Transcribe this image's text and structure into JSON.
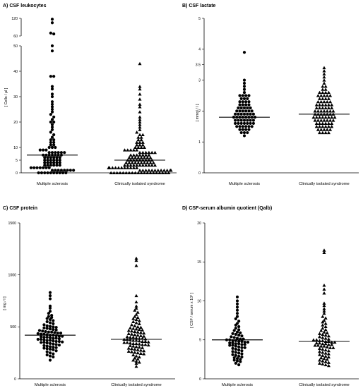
{
  "chart_data": [
    {
      "type": "scatter",
      "panel": "A",
      "title": "A) CSF leukocytes",
      "ylabel": "[ Cells / µl ]",
      "categories": [
        "Multiple sclerosis",
        "Clinically isolated syndrome"
      ],
      "y_axis_break": {
        "lower_range": [
          0,
          50
        ],
        "upper_range": [
          60,
          120
        ]
      },
      "yticks_lower": [
        "0",
        "5",
        "10",
        "20",
        "30",
        "40",
        "50"
      ],
      "yticks_upper": [
        "60",
        "120"
      ],
      "series": [
        {
          "name": "Multiple sclerosis",
          "marker": "circle",
          "median": 7,
          "values": [
            117,
            105,
            70,
            67,
            50,
            48,
            38,
            38,
            34,
            33,
            31,
            30,
            28,
            27,
            26,
            25,
            24,
            23,
            22,
            21,
            20,
            20,
            19,
            18,
            17,
            16,
            15,
            14,
            13,
            13,
            12,
            12,
            11,
            11,
            10,
            10,
            10,
            9,
            9,
            9,
            8,
            8,
            8,
            8,
            8,
            8,
            7,
            7,
            7,
            7,
            7,
            7,
            7,
            6,
            6,
            6,
            6,
            6,
            6,
            5,
            5,
            5,
            5,
            5,
            5,
            4,
            4,
            4,
            4,
            4,
            4,
            3,
            3,
            3,
            3,
            3,
            3,
            2,
            2,
            2,
            2,
            2,
            2,
            2,
            1,
            1,
            1,
            1,
            1,
            1,
            1,
            1,
            0,
            0,
            0,
            0,
            0,
            0,
            0,
            0,
            0,
            0
          ]
        },
        {
          "name": "Clinically isolated syndrome",
          "marker": "triangle",
          "median": 5,
          "values": [
            43,
            34,
            33,
            31,
            29,
            27,
            26,
            24,
            22,
            21,
            20,
            19,
            18,
            17,
            16,
            15,
            15,
            14,
            14,
            13,
            13,
            12,
            12,
            12,
            11,
            11,
            11,
            10,
            10,
            10,
            10,
            9,
            9,
            9,
            9,
            9,
            8,
            8,
            8,
            8,
            8,
            8,
            7,
            7,
            7,
            7,
            7,
            7,
            7,
            6,
            6,
            6,
            6,
            6,
            6,
            6,
            6,
            5,
            5,
            5,
            5,
            5,
            5,
            5,
            5,
            5,
            4,
            4,
            4,
            4,
            4,
            4,
            4,
            4,
            4,
            4,
            3,
            3,
            3,
            3,
            3,
            3,
            3,
            3,
            3,
            3,
            3,
            2,
            2,
            2,
            2,
            2,
            2,
            2,
            2,
            2,
            2,
            2,
            2,
            1,
            1,
            1,
            1,
            1,
            1,
            1,
            1,
            1,
            1,
            1,
            1,
            1,
            0,
            0,
            0,
            0,
            0,
            0,
            0,
            0,
            0,
            0,
            0,
            0,
            0,
            0,
            0,
            0,
            0,
            0,
            0,
            0
          ]
        }
      ]
    },
    {
      "type": "scatter",
      "panel": "B",
      "title": "B) CSF lactate",
      "ylabel": "[ mmol / l ]",
      "categories": [
        "Multiple sclerosis",
        "Clinically isolated syndrome"
      ],
      "ylim": [
        0,
        5
      ],
      "yticks": [
        "0",
        "1",
        "2",
        "3",
        "3.5",
        "4",
        "5"
      ],
      "ytick_values": [
        0,
        1,
        2,
        3,
        3.5,
        4,
        5
      ],
      "series": [
        {
          "name": "Multiple sclerosis",
          "marker": "circle",
          "median": 1.8,
          "values": [
            3.9,
            3.0,
            2.9,
            2.8,
            2.7,
            2.6,
            2.5,
            2.5,
            2.5,
            2.5,
            2.4,
            2.4,
            2.4,
            2.3,
            2.3,
            2.3,
            2.3,
            2.2,
            2.2,
            2.2,
            2.2,
            2.1,
            2.1,
            2.1,
            2.1,
            2.1,
            2.0,
            2.0,
            2.0,
            2.0,
            2.0,
            2.0,
            1.9,
            1.9,
            1.9,
            1.9,
            1.9,
            1.9,
            1.9,
            1.8,
            1.8,
            1.8,
            1.8,
            1.8,
            1.8,
            1.8,
            1.8,
            1.7,
            1.7,
            1.7,
            1.7,
            1.7,
            1.7,
            1.7,
            1.6,
            1.6,
            1.6,
            1.6,
            1.6,
            1.6,
            1.6,
            1.5,
            1.5,
            1.5,
            1.5,
            1.5,
            1.5,
            1.4,
            1.4,
            1.4,
            1.4,
            1.3,
            1.3,
            1.3,
            1.2
          ]
        },
        {
          "name": "Clinically isolated syndrome",
          "marker": "triangle",
          "median": 1.9,
          "values": [
            3.4,
            3.3,
            3.2,
            3.1,
            3.0,
            2.9,
            2.8,
            2.8,
            2.7,
            2.7,
            2.6,
            2.6,
            2.6,
            2.6,
            2.5,
            2.5,
            2.5,
            2.5,
            2.5,
            2.4,
            2.4,
            2.4,
            2.4,
            2.3,
            2.3,
            2.3,
            2.3,
            2.3,
            2.2,
            2.2,
            2.2,
            2.2,
            2.2,
            2.2,
            2.1,
            2.1,
            2.1,
            2.1,
            2.1,
            2.1,
            2.0,
            2.0,
            2.0,
            2.0,
            2.0,
            2.0,
            2.0,
            1.9,
            1.9,
            1.9,
            1.9,
            1.9,
            1.9,
            1.9,
            1.8,
            1.8,
            1.8,
            1.8,
            1.8,
            1.8,
            1.8,
            1.8,
            1.7,
            1.7,
            1.7,
            1.7,
            1.7,
            1.7,
            1.7,
            1.6,
            1.6,
            1.6,
            1.6,
            1.6,
            1.6,
            1.5,
            1.5,
            1.5,
            1.5,
            1.5,
            1.5,
            1.4,
            1.4,
            1.4,
            1.4,
            1.4,
            1.3,
            1.3,
            1.3,
            1.3
          ]
        }
      ]
    },
    {
      "type": "scatter",
      "panel": "C",
      "title": "C) CSF protein",
      "ylabel": "[ mg / l ]",
      "categories": [
        "Multiple sclerosis",
        "Clinically isolated syndrome"
      ],
      "ylim": [
        0,
        1500
      ],
      "yticks": [
        "0",
        "500",
        "1000",
        "1500"
      ],
      "ytick_values": [
        0,
        500,
        1000,
        1500
      ],
      "series": [
        {
          "name": "Multiple sclerosis",
          "marker": "circle",
          "median": 420,
          "values": [
            830,
            800,
            770,
            700,
            680,
            650,
            630,
            610,
            600,
            590,
            580,
            570,
            560,
            550,
            540,
            530,
            520,
            510,
            505,
            500,
            495,
            490,
            485,
            480,
            475,
            470,
            465,
            460,
            455,
            450,
            450,
            445,
            440,
            440,
            435,
            430,
            430,
            425,
            420,
            420,
            415,
            410,
            410,
            405,
            400,
            400,
            395,
            390,
            390,
            385,
            380,
            380,
            375,
            370,
            370,
            365,
            360,
            360,
            355,
            350,
            350,
            345,
            340,
            335,
            330,
            325,
            320,
            315,
            310,
            305,
            300,
            295,
            290,
            285,
            280,
            270,
            260,
            250,
            240,
            230,
            220,
            210,
            180
          ]
        },
        {
          "name": "Clinically isolated syndrome",
          "marker": "triangle",
          "median": 380,
          "values": [
            1160,
            1140,
            1090,
            800,
            740,
            700,
            680,
            660,
            640,
            620,
            600,
            590,
            580,
            570,
            560,
            550,
            540,
            530,
            520,
            510,
            500,
            495,
            490,
            485,
            480,
            475,
            470,
            465,
            460,
            455,
            450,
            445,
            440,
            435,
            430,
            425,
            420,
            415,
            410,
            405,
            400,
            400,
            395,
            390,
            390,
            385,
            380,
            380,
            375,
            370,
            370,
            365,
            360,
            360,
            355,
            350,
            350,
            345,
            340,
            340,
            335,
            330,
            330,
            325,
            320,
            315,
            310,
            305,
            300,
            295,
            290,
            285,
            280,
            275,
            270,
            265,
            260,
            255,
            250,
            245,
            240,
            230,
            220,
            210,
            200,
            190,
            180,
            170,
            160,
            150,
            120
          ]
        }
      ]
    },
    {
      "type": "scatter",
      "panel": "D",
      "title": "D) CSF-serum albumin quotient (Qalb)",
      "ylabel": "[ CSF / serum x 10³ ]",
      "categories": [
        "Multiple sclerosis",
        "Clinically isolated syndrome"
      ],
      "ylim": [
        0,
        20
      ],
      "yticks": [
        "0",
        "5",
        "10",
        "15",
        "20"
      ],
      "ytick_values": [
        0,
        5,
        10,
        15,
        20
      ],
      "series": [
        {
          "name": "Multiple sclerosis",
          "marker": "circle",
          "median": 5.0,
          "values": [
            10.5,
            10.0,
            9.6,
            9.2,
            8.8,
            8.4,
            8.0,
            7.7,
            7.4,
            7.1,
            6.9,
            6.7,
            6.5,
            6.3,
            6.2,
            6.0,
            5.9,
            5.8,
            5.7,
            5.6,
            5.5,
            5.4,
            5.3,
            5.2,
            5.1,
            5.1,
            5.0,
            5.0,
            4.9,
            4.9,
            4.8,
            4.8,
            4.7,
            4.7,
            4.6,
            4.6,
            4.5,
            4.5,
            4.4,
            4.4,
            4.3,
            4.3,
            4.2,
            4.1,
            4.0,
            4.0,
            3.9,
            3.8,
            3.7,
            3.6,
            3.5,
            3.4,
            3.3,
            3.2,
            3.1,
            3.0,
            2.9,
            2.8,
            2.7,
            2.6,
            2.5,
            2.4,
            2.3,
            2.2,
            2.0,
            1.8
          ]
        },
        {
          "name": "Clinically isolated syndrome",
          "marker": "triangle",
          "median": 4.8,
          "values": [
            16.5,
            16.2,
            12.0,
            11.5,
            11.0,
            9.7,
            9.4,
            9.0,
            8.7,
            8.4,
            8.0,
            7.8,
            7.5,
            7.3,
            7.1,
            6.9,
            6.7,
            6.5,
            6.3,
            6.2,
            6.0,
            5.9,
            5.8,
            5.7,
            5.6,
            5.5,
            5.4,
            5.3,
            5.2,
            5.1,
            5.0,
            5.0,
            4.9,
            4.9,
            4.8,
            4.8,
            4.7,
            4.7,
            4.6,
            4.6,
            4.5,
            4.5,
            4.4,
            4.4,
            4.3,
            4.3,
            4.2,
            4.2,
            4.1,
            4.0,
            4.0,
            3.9,
            3.8,
            3.7,
            3.6,
            3.5,
            3.4,
            3.3,
            3.2,
            3.1,
            3.0,
            2.9,
            2.8,
            2.7,
            2.6,
            2.5,
            2.4,
            2.3,
            2.2,
            2.1,
            2.0,
            1.9,
            1.8,
            1.7
          ]
        }
      ]
    }
  ]
}
